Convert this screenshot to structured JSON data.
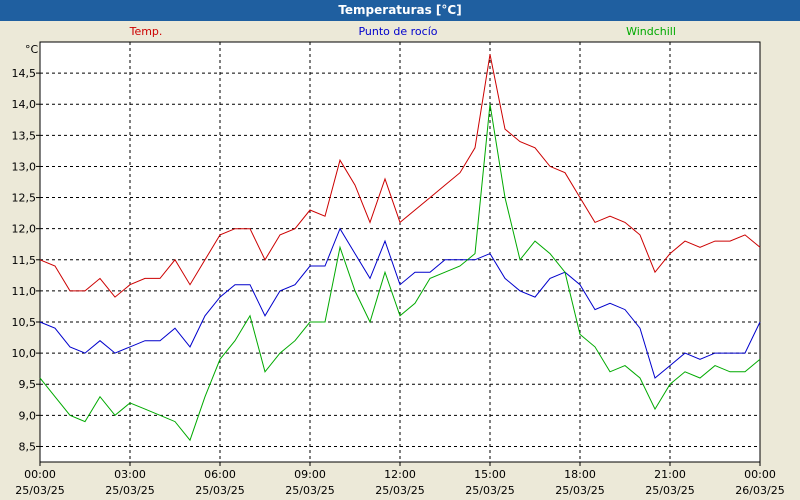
{
  "window": {
    "title": "Temperaturas [°C]"
  },
  "chart_data": {
    "type": "line",
    "title": "Temperaturas [°C]",
    "unit": "°C",
    "ylim": [
      8.25,
      15.0
    ],
    "grid": true,
    "legend_position": "top",
    "y_ticks": [
      "8,5",
      "9,0",
      "9,5",
      "10,0",
      "10,5",
      "11,0",
      "11,5",
      "12,0",
      "12,5",
      "13,0",
      "13,5",
      "14,0",
      "14,5"
    ],
    "x_ticks": [
      {
        "time": "00:00",
        "date": "25/03/25"
      },
      {
        "time": "03:00",
        "date": "25/03/25"
      },
      {
        "time": "06:00",
        "date": "25/03/25"
      },
      {
        "time": "09:00",
        "date": "25/03/25"
      },
      {
        "time": "12:00",
        "date": "25/03/25"
      },
      {
        "time": "15:00",
        "date": "25/03/25"
      },
      {
        "time": "18:00",
        "date": "25/03/25"
      },
      {
        "time": "21:00",
        "date": "25/03/25"
      },
      {
        "time": "00:00",
        "date": "26/03/25"
      }
    ],
    "x_hours": [
      0,
      0.5,
      1,
      1.5,
      2,
      2.5,
      3,
      3.5,
      4,
      4.5,
      5,
      5.5,
      6,
      6.5,
      7,
      7.5,
      8,
      8.5,
      9,
      9.5,
      10,
      10.5,
      11,
      11.5,
      12,
      12.5,
      13,
      13.5,
      14,
      14.5,
      15,
      15.5,
      16,
      16.5,
      17,
      17.5,
      18,
      18.5,
      19,
      19.5,
      20,
      20.5,
      21,
      21.5,
      22,
      22.5,
      23,
      23.5,
      24
    ],
    "series": [
      {
        "name": "Temp.",
        "color": "#cc0000",
        "values": [
          11.5,
          11.4,
          11.0,
          11.0,
          11.2,
          10.9,
          11.1,
          11.2,
          11.2,
          11.5,
          11.1,
          11.5,
          11.9,
          12.0,
          12.0,
          11.5,
          11.9,
          12.0,
          12.3,
          12.2,
          13.1,
          12.7,
          12.1,
          12.8,
          12.1,
          12.3,
          12.5,
          12.7,
          12.9,
          13.3,
          14.8,
          13.6,
          13.4,
          13.3,
          13.0,
          12.9,
          12.5,
          12.1,
          12.2,
          12.1,
          11.9,
          11.3,
          11.6,
          11.8,
          11.7,
          11.8,
          11.8,
          11.9,
          11.7
        ]
      },
      {
        "name": "Punto de rocío",
        "color": "#0000cc",
        "values": [
          10.5,
          10.4,
          10.1,
          10.0,
          10.2,
          10.0,
          10.1,
          10.2,
          10.2,
          10.4,
          10.1,
          10.6,
          10.9,
          11.1,
          11.1,
          10.6,
          11.0,
          11.1,
          11.4,
          11.4,
          12.0,
          11.6,
          11.2,
          11.8,
          11.1,
          11.3,
          11.3,
          11.5,
          11.5,
          11.5,
          11.6,
          11.2,
          11.0,
          10.9,
          11.2,
          11.3,
          11.1,
          10.7,
          10.8,
          10.7,
          10.4,
          9.6,
          9.8,
          10.0,
          9.9,
          10.0,
          10.0,
          10.0,
          10.5
        ]
      },
      {
        "name": "Windchill",
        "color": "#00aa00",
        "values": [
          9.6,
          9.3,
          9.0,
          8.9,
          9.3,
          9.0,
          9.2,
          9.1,
          9.0,
          8.9,
          8.6,
          9.3,
          9.9,
          10.2,
          10.6,
          9.7,
          10.0,
          10.2,
          10.5,
          10.5,
          11.7,
          11.0,
          10.5,
          11.3,
          10.6,
          10.8,
          11.2,
          11.3,
          11.4,
          11.6,
          14.0,
          12.5,
          11.5,
          11.8,
          11.6,
          11.3,
          10.3,
          10.1,
          9.7,
          9.8,
          9.6,
          9.1,
          9.5,
          9.7,
          9.6,
          9.8,
          9.7,
          9.7,
          9.9
        ]
      }
    ]
  }
}
